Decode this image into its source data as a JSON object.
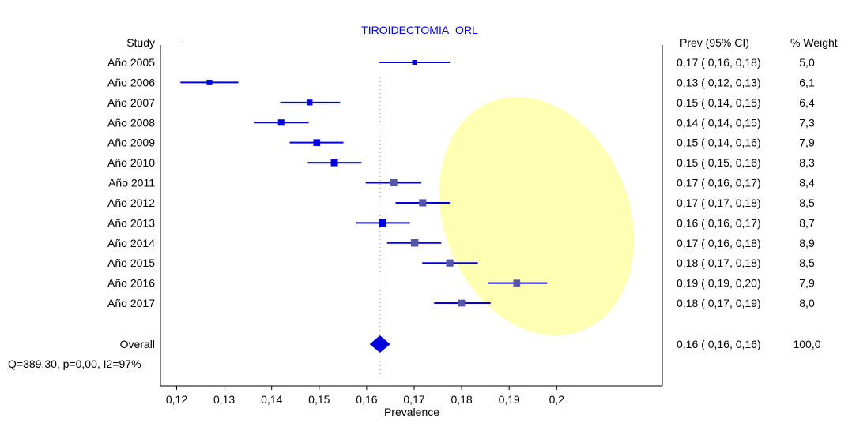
{
  "chart_data": {
    "type": "forest",
    "title": "TIROIDECTOMIA_ORL",
    "xlabel": "Prevalence",
    "left_header": "Study",
    "right_headers": [
      "Prev (95% CI)",
      "% Weight"
    ],
    "xlim": [
      0.117,
      0.201
    ],
    "x_ticks": [
      0.12,
      0.13,
      0.14,
      0.15,
      0.16,
      0.17,
      0.18,
      0.19,
      0.2
    ],
    "x_tick_labels": [
      "0,12",
      "0,13",
      "0,14",
      "0,15",
      "0,16",
      "0,17",
      "0,18",
      "0,19",
      "0,2"
    ],
    "reference_line": 0.1628,
    "studies": [
      {
        "label": "Año 2005",
        "est": 0.1701,
        "lo": 0.1627,
        "hi": 0.1775,
        "ci_text": "0,17  (  0,16,  0,18)",
        "weight_text": "5,0",
        "weight": 5.0
      },
      {
        "label": "Año 2006",
        "est": 0.1269,
        "lo": 0.1208,
        "hi": 0.133,
        "ci_text": "0,13  (  0,12,  0,13)",
        "weight_text": "6,1",
        "weight": 6.1
      },
      {
        "label": "Año 2007",
        "est": 0.148,
        "lo": 0.1418,
        "hi": 0.1544,
        "ci_text": "0,15  (  0,14,  0,15)",
        "weight_text": "6,4",
        "weight": 6.4
      },
      {
        "label": "Año 2008",
        "est": 0.142,
        "lo": 0.1364,
        "hi": 0.1478,
        "ci_text": "0,14  (  0,14,  0,15)",
        "weight_text": "7,3",
        "weight": 7.3
      },
      {
        "label": "Año 2009",
        "est": 0.1495,
        "lo": 0.1438,
        "hi": 0.1551,
        "ci_text": "0,15  (  0,14,  0,16)",
        "weight_text": "7,9",
        "weight": 7.9
      },
      {
        "label": "Año 2010",
        "est": 0.1532,
        "lo": 0.1476,
        "hi": 0.1589,
        "ci_text": "0,15  (  0,15,  0,16)",
        "weight_text": "8,3",
        "weight": 8.3
      },
      {
        "label": "Año 2011",
        "est": 0.1657,
        "lo": 0.1598,
        "hi": 0.1715,
        "ci_text": "0,17  (  0,16,  0,17)",
        "weight_text": "8,4",
        "weight": 8.4
      },
      {
        "label": "Año 2012",
        "est": 0.1718,
        "lo": 0.1661,
        "hi": 0.1775,
        "ci_text": "0,17  (  0,17,  0,18)",
        "weight_text": "8,5",
        "weight": 8.5
      },
      {
        "label": "Año 2013",
        "est": 0.1634,
        "lo": 0.1578,
        "hi": 0.1691,
        "ci_text": "0,16  (  0,16,  0,17)",
        "weight_text": "8,7",
        "weight": 8.7
      },
      {
        "label": "Año 2014",
        "est": 0.1701,
        "lo": 0.1643,
        "hi": 0.1757,
        "ci_text": "0,17  (  0,16,  0,18)",
        "weight_text": "8,9",
        "weight": 8.9
      },
      {
        "label": "Año 2015",
        "est": 0.1775,
        "lo": 0.1717,
        "hi": 0.1834,
        "ci_text": "0,18  (  0,17,  0,18)",
        "weight_text": "8,5",
        "weight": 8.5
      },
      {
        "label": "Año 2016",
        "est": 0.1916,
        "lo": 0.1855,
        "hi": 0.198,
        "ci_text": "0,19  (  0,19,  0,20)",
        "weight_text": "7,9",
        "weight": 7.9
      },
      {
        "label": "Año 2017",
        "est": 0.18,
        "lo": 0.1742,
        "hi": 0.1861,
        "ci_text": "0,18  (  0,17,  0,19)",
        "weight_text": "8,0",
        "weight": 8.0
      }
    ],
    "overall": {
      "label": "Overall",
      "est": 0.1628,
      "lo": 0.1621,
      "hi": 0.1635,
      "ci_text": "0,16  (  0,16,  0,16)",
      "weight_text": "100,0"
    },
    "heterogeneity": "Q=389,30, p=0,00, I2=97%",
    "colors": {
      "title": "#0000ee",
      "marker": "#0000dd",
      "highlight_marker": "#5555aa",
      "ellipse": "#ffffb3",
      "axis": "#000000"
    },
    "annotation": "light-yellow ellipse highlighting the 2011-2017 estimates"
  }
}
